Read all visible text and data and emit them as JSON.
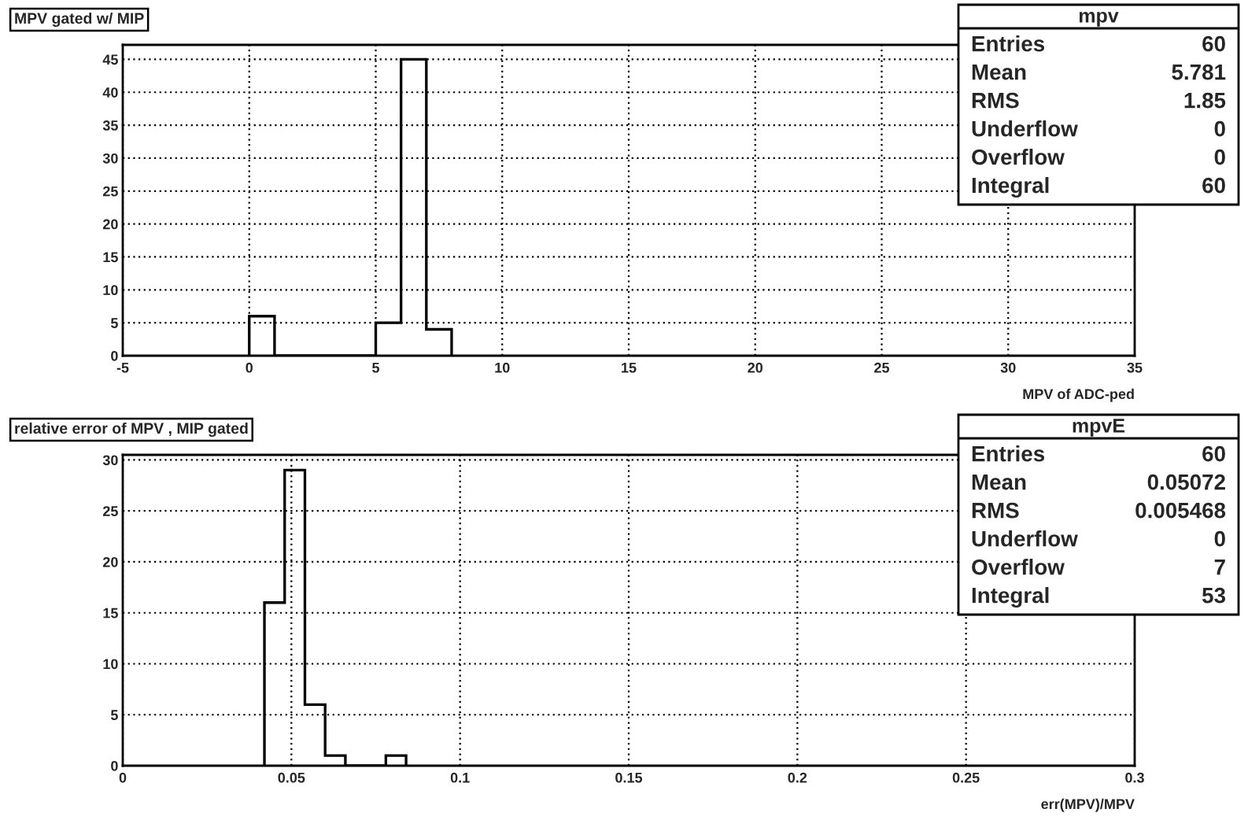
{
  "chart_data": [
    {
      "type": "histogram",
      "title": "MPV gated w/ MIP",
      "xlabel": "MPV of ADC-ped",
      "bins": [
        0,
        1,
        2,
        3,
        4,
        5,
        6,
        7,
        8
      ],
      "values": [
        6,
        0,
        0,
        0,
        0,
        5,
        45,
        4
      ],
      "color": "#000000",
      "xlim": [
        -5,
        35
      ],
      "ylim": [
        0,
        47.2
      ],
      "xticks": [
        -5,
        0,
        5,
        10,
        15,
        20,
        25,
        30,
        35
      ],
      "yticks": [
        0,
        5,
        10,
        15,
        20,
        25,
        30,
        35,
        40,
        45
      ],
      "grid": true,
      "annotations": [
        "mpv",
        "Entries",
        "60",
        "Mean",
        "5.781",
        "RMS",
        "1.85",
        "Underflow",
        "0",
        "Overflow",
        "0",
        "Integral",
        "60"
      ]
    },
    {
      "type": "histogram",
      "title": "relative error of MPV , MIP gated",
      "xlabel": "err(MPV)/MPV",
      "bins": [
        0.042,
        0.048,
        0.054,
        0.06,
        0.066,
        0.072,
        0.078,
        0.084
      ],
      "values": [
        16,
        29,
        6,
        1,
        0,
        0,
        1
      ],
      "color": "#000000",
      "xlim": [
        0,
        0.3
      ],
      "ylim": [
        0,
        30.5
      ],
      "xticks": [
        0,
        0.05,
        0.1,
        0.15,
        0.2,
        0.25,
        0.3
      ],
      "yticks": [
        0,
        5,
        10,
        15,
        20,
        25,
        30
      ],
      "grid": true,
      "annotations": [
        "mpvE",
        "Entries",
        "60",
        "Mean",
        "0.05072",
        "RMS",
        "0.005468",
        "Underflow",
        "0",
        "Overflow",
        "7",
        "Integral",
        "53"
      ]
    }
  ]
}
